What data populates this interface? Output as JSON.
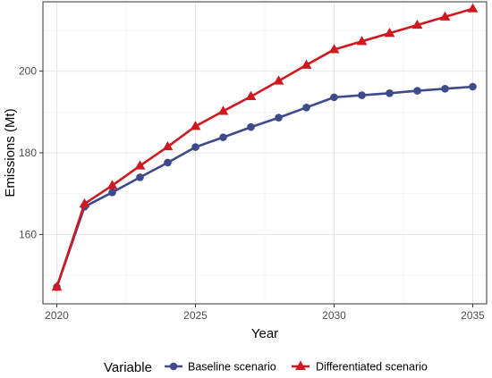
{
  "chart_data": {
    "type": "line",
    "xlabel": "Year",
    "ylabel": "Emissions (Mt)",
    "xlim": [
      2019.5,
      2035.5
    ],
    "ylim": [
      143,
      217
    ],
    "x_ticks": [
      2020,
      2025,
      2030,
      2035
    ],
    "y_ticks": [
      160,
      180,
      200
    ],
    "grid": true,
    "legend": {
      "title": "Variable",
      "placement": "bottom"
    },
    "x": [
      2020,
      2021,
      2022,
      2023,
      2024,
      2025,
      2026,
      2027,
      2028,
      2029,
      2030,
      2031,
      2032,
      2033,
      2034,
      2035
    ],
    "series": [
      {
        "name": "Baseline scenario",
        "color": "#3f4a8a",
        "marker": "circle",
        "values": [
          147.1,
          166.8,
          170.3,
          174.0,
          177.6,
          181.4,
          183.8,
          186.3,
          188.6,
          191.1,
          193.6,
          194.1,
          194.6,
          195.2,
          195.7,
          196.2
        ]
      },
      {
        "name": "Differentiated scenario",
        "color": "#d01820",
        "marker": "triangle",
        "values": [
          147.1,
          167.5,
          172.0,
          176.8,
          181.5,
          186.5,
          190.2,
          193.8,
          197.6,
          201.5,
          205.3,
          207.3,
          209.3,
          211.3,
          213.3,
          215.3
        ]
      }
    ]
  }
}
